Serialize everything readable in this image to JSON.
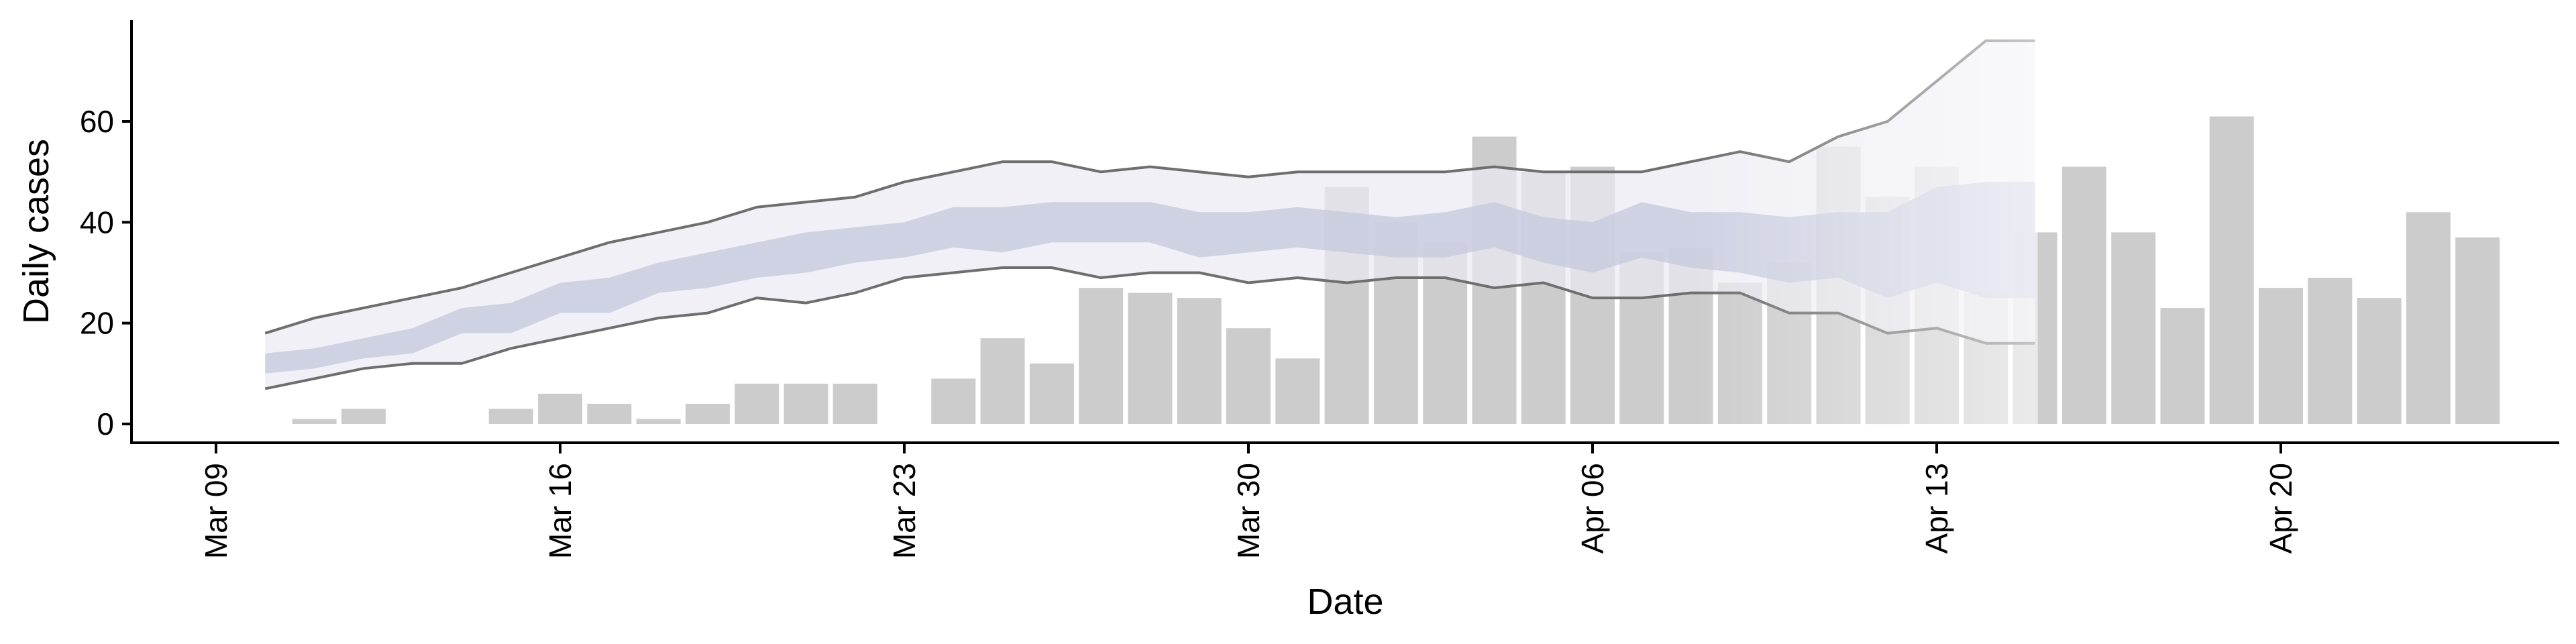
{
  "chart_data": {
    "type": "bar",
    "xlabel": "Date",
    "ylabel": "Daily cases",
    "ylim": [
      -3,
      80
    ],
    "yticks": [
      0,
      20,
      40,
      60
    ],
    "x_tick_labels": [
      "Mar 09",
      "Mar 16",
      "Mar 23",
      "Mar 30",
      "Apr 06",
      "Apr 13",
      "Apr 20"
    ],
    "x_tick_dates": [
      "2020-03-09",
      "2020-03-16",
      "2020-03-23",
      "2020-03-30",
      "2020-04-06",
      "2020-04-13",
      "2020-04-20"
    ],
    "x_range": [
      "2020-03-07",
      "2020-04-28"
    ],
    "grid": false,
    "legend": "none",
    "colors": {
      "bars": "#cccccc",
      "band_outer": "#e9eaf2",
      "band_inner": "#c4c8dc",
      "line": "#6e6e6e"
    },
    "cases": {
      "dates": [
        "2020-03-10",
        "2020-03-11",
        "2020-03-12",
        "2020-03-13",
        "2020-03-14",
        "2020-03-15",
        "2020-03-16",
        "2020-03-17",
        "2020-03-18",
        "2020-03-19",
        "2020-03-20",
        "2020-03-21",
        "2020-03-22",
        "2020-03-23",
        "2020-03-24",
        "2020-03-25",
        "2020-03-26",
        "2020-03-27",
        "2020-03-28",
        "2020-03-29",
        "2020-03-30",
        "2020-03-31",
        "2020-04-01",
        "2020-04-02",
        "2020-04-03",
        "2020-04-04",
        "2020-04-05",
        "2020-04-06",
        "2020-04-07",
        "2020-04-08",
        "2020-04-09",
        "2020-04-10",
        "2020-04-11",
        "2020-04-12",
        "2020-04-13",
        "2020-04-14",
        "2020-04-15",
        "2020-04-16",
        "2020-04-17",
        "2020-04-18",
        "2020-04-19",
        "2020-04-20",
        "2020-04-21",
        "2020-04-22",
        "2020-04-23",
        "2020-04-24"
      ],
      "values": [
        0,
        1,
        3,
        0,
        0,
        3,
        6,
        4,
        1,
        4,
        8,
        8,
        8,
        0,
        9,
        17,
        12,
        27,
        26,
        25,
        19,
        13,
        47,
        40,
        36,
        57,
        50,
        51,
        34,
        35,
        28,
        32,
        55,
        45,
        51,
        26,
        38,
        51,
        38,
        23,
        61,
        27,
        29,
        25,
        42,
        37
      ]
    },
    "estimate": {
      "dates": [
        "2020-03-10",
        "2020-03-11",
        "2020-03-12",
        "2020-03-13",
        "2020-03-14",
        "2020-03-15",
        "2020-03-16",
        "2020-03-17",
        "2020-03-18",
        "2020-03-19",
        "2020-03-20",
        "2020-03-21",
        "2020-03-22",
        "2020-03-23",
        "2020-03-24",
        "2020-03-25",
        "2020-03-26",
        "2020-03-27",
        "2020-03-28",
        "2020-03-29",
        "2020-03-30",
        "2020-03-31",
        "2020-04-01",
        "2020-04-02",
        "2020-04-03",
        "2020-04-04",
        "2020-04-05",
        "2020-04-06",
        "2020-04-07",
        "2020-04-08",
        "2020-04-09",
        "2020-04-10",
        "2020-04-11",
        "2020-04-12",
        "2020-04-13",
        "2020-04-14",
        "2020-04-15"
      ],
      "upper90": [
        18,
        21,
        23,
        25,
        27,
        30,
        33,
        36,
        38,
        40,
        43,
        44,
        45,
        48,
        50,
        52,
        52,
        50,
        51,
        50,
        49,
        50,
        50,
        50,
        50,
        51,
        50,
        50,
        50,
        52,
        54,
        52,
        57,
        60,
        68,
        76,
        76
      ],
      "upper50": [
        14,
        15,
        17,
        19,
        23,
        24,
        28,
        29,
        32,
        34,
        36,
        38,
        39,
        40,
        43,
        43,
        44,
        44,
        44,
        42,
        42,
        43,
        42,
        41,
        42,
        44,
        41,
        40,
        44,
        42,
        42,
        41,
        42,
        42,
        47,
        48,
        48
      ],
      "lower50": [
        10,
        11,
        13,
        14,
        18,
        18,
        22,
        22,
        26,
        27,
        29,
        30,
        32,
        33,
        35,
        34,
        36,
        36,
        36,
        33,
        34,
        35,
        34,
        33,
        33,
        35,
        32,
        30,
        33,
        31,
        30,
        28,
        29,
        25,
        28,
        25,
        25
      ],
      "lower90": [
        7,
        9,
        11,
        12,
        12,
        15,
        17,
        19,
        21,
        22,
        25,
        24,
        26,
        29,
        30,
        31,
        31,
        29,
        30,
        30,
        28,
        29,
        28,
        29,
        29,
        27,
        28,
        25,
        25,
        26,
        26,
        22,
        22,
        18,
        19,
        16,
        16
      ]
    },
    "forecast_fade_start": "2020-04-08"
  }
}
